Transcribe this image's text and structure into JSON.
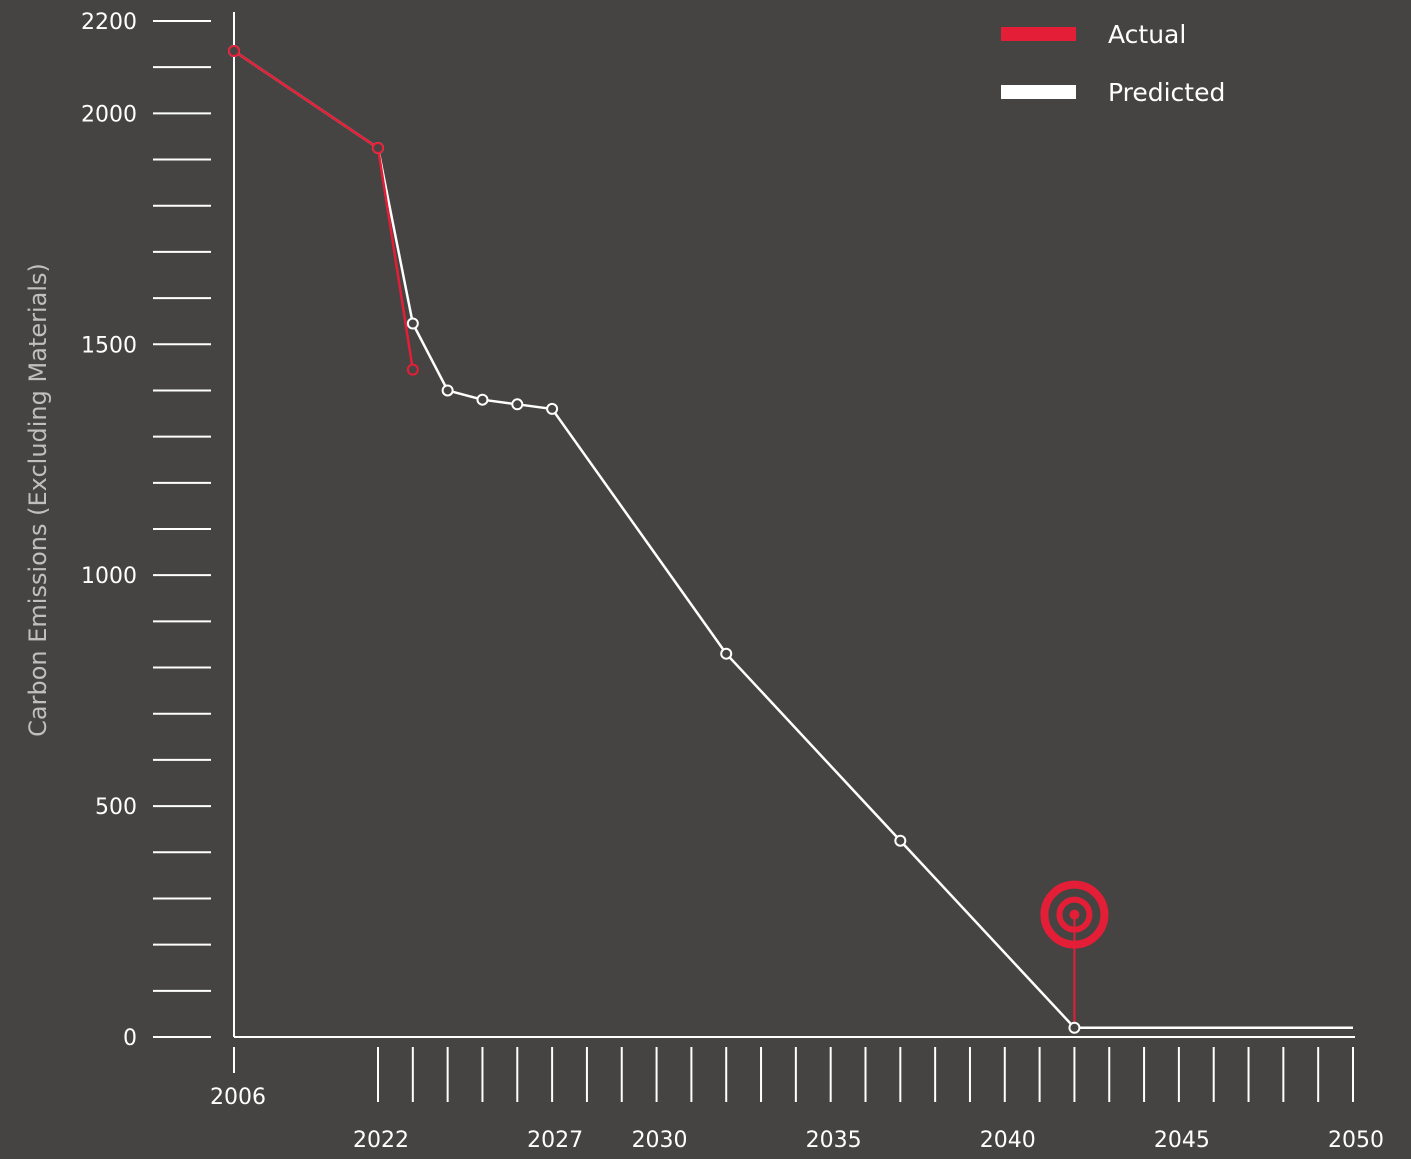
{
  "chart_data": {
    "type": "line",
    "title": "",
    "xlabel": "",
    "ylabel": "Carbon Emissions (Excluding Materials)",
    "ylim": [
      0,
      2200
    ],
    "y_ticks": [
      0,
      500,
      1000,
      1500,
      2000,
      2200
    ],
    "y_minor_step": 100,
    "x_ticks": [
      {
        "x": 2006,
        "label": "2006"
      },
      {
        "x": 2022,
        "label": "2022"
      },
      {
        "x": 2027,
        "label": "2027"
      },
      {
        "x": 2030,
        "label": "2030"
      },
      {
        "x": 2035,
        "label": "2035"
      },
      {
        "x": 2040,
        "label": "2040"
      },
      {
        "x": 2045,
        "label": "2045"
      },
      {
        "x": 2050,
        "label": "2050"
      }
    ],
    "x_minor_range": [
      2022,
      2050
    ],
    "legend_position": "top-right",
    "series": [
      {
        "name": "Actual",
        "color": "#e31e36",
        "points": [
          [
            2006,
            2135
          ],
          [
            2022,
            1925
          ],
          [
            2023,
            1445
          ]
        ]
      },
      {
        "name": "Predicted",
        "color": "#ffffff",
        "points": [
          [
            2006,
            2135
          ],
          [
            2022,
            1925
          ],
          [
            2023,
            1545
          ],
          [
            2024,
            1400
          ],
          [
            2025,
            1380
          ],
          [
            2026,
            1370
          ],
          [
            2027,
            1360
          ],
          [
            2032,
            830
          ],
          [
            2037,
            425
          ],
          [
            2042,
            20
          ],
          [
            2050,
            20
          ]
        ]
      }
    ],
    "target": {
      "x": 2042,
      "y": 20,
      "marker_y": 265,
      "color": "#e31e36"
    }
  }
}
